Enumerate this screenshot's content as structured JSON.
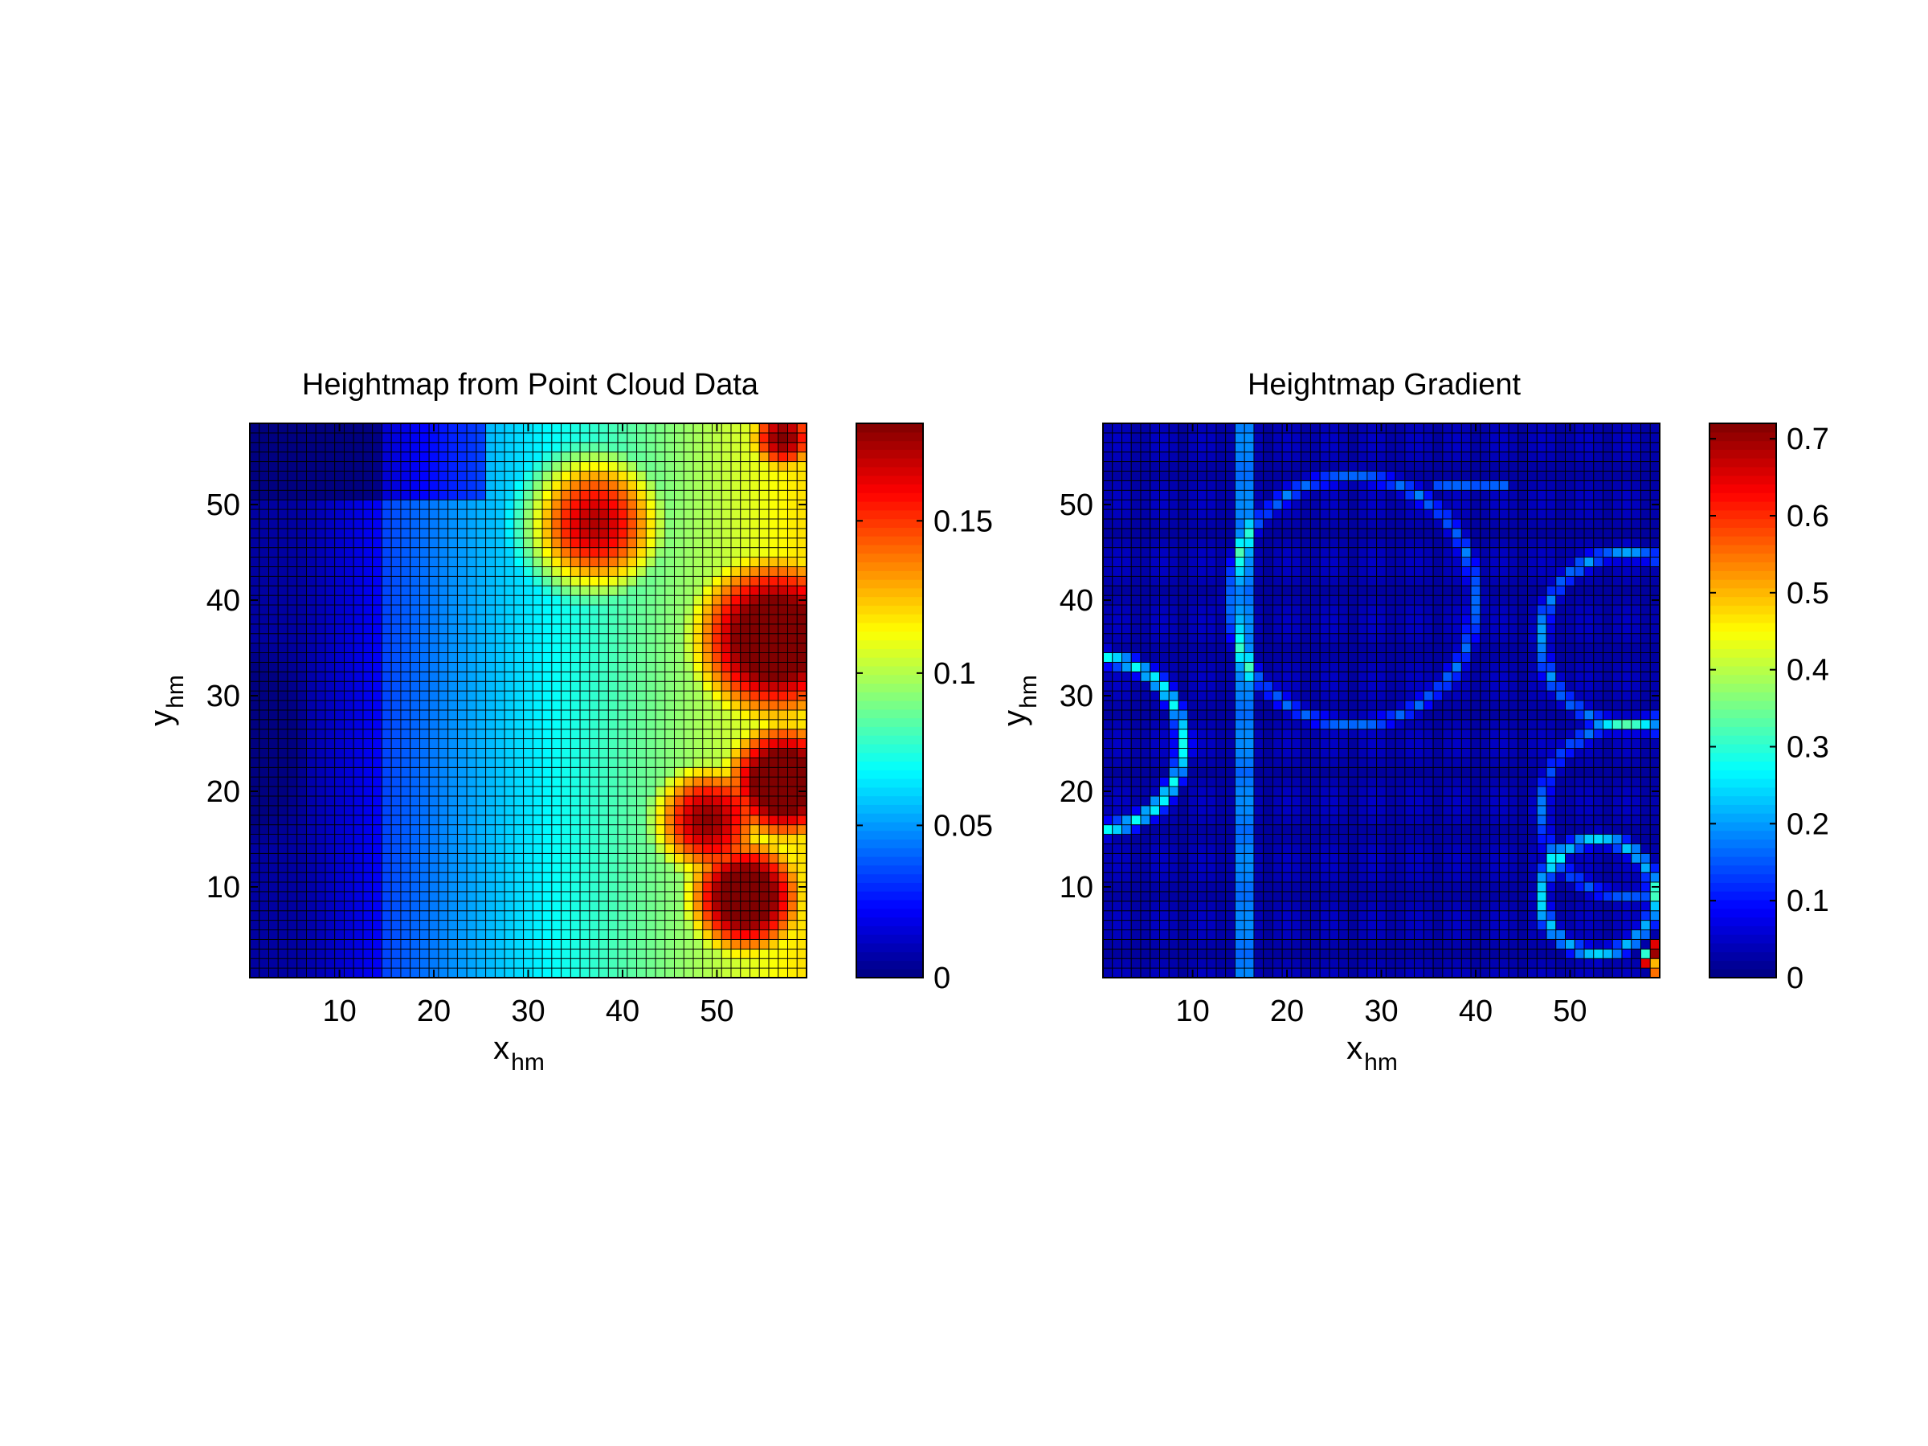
{
  "chart_data": [
    {
      "type": "heatmap",
      "title": "Heightmap from Point Cloud Data",
      "xlabel": {
        "main": "x",
        "sub": "hm"
      },
      "ylabel": {
        "main": "y",
        "sub": "hm"
      },
      "grid_cols": 59,
      "grid_rows": 58,
      "xlim": [
        0.5,
        59.5
      ],
      "ylim": [
        0.5,
        58.5
      ],
      "xticks": [
        10,
        20,
        30,
        40,
        50
      ],
      "yticks": [
        10,
        20,
        30,
        40,
        50
      ],
      "colorbar": {
        "colormap": "jet",
        "clim": [
          0,
          0.182
        ],
        "ticks": [
          0,
          0.05,
          0.1,
          0.15
        ],
        "tick_labels": [
          "0",
          "0.05",
          "0.1",
          "0.15"
        ]
      },
      "features": [
        {
          "kind": "gaussian",
          "x": 56,
          "y": 36,
          "height": 0.175,
          "spread": 7
        },
        {
          "kind": "gaussian",
          "x": 57,
          "y": 21,
          "height": 0.18,
          "spread": 5
        },
        {
          "kind": "gaussian",
          "x": 53,
          "y": 9,
          "height": 0.175,
          "spread": 5
        },
        {
          "kind": "gaussian",
          "x": 37,
          "y": 48,
          "height": 0.15,
          "spread": 6
        },
        {
          "kind": "gaussian",
          "x": 49,
          "y": 17,
          "height": 0.15,
          "spread": 5
        },
        {
          "kind": "gaussian",
          "x": 57,
          "y": 57,
          "height": 0.15,
          "spread": 3
        }
      ]
    },
    {
      "type": "heatmap",
      "title": "Heightmap Gradient",
      "xlabel": {
        "main": "x",
        "sub": "hm"
      },
      "ylabel": {
        "main": "y",
        "sub": "hm"
      },
      "grid_cols": 59,
      "grid_rows": 58,
      "xlim": [
        0.5,
        59.5
      ],
      "ylim": [
        0.5,
        58.5
      ],
      "xticks": [
        10,
        20,
        30,
        40,
        50
      ],
      "yticks": [
        10,
        20,
        30,
        40,
        50
      ],
      "colorbar": {
        "colormap": "jet",
        "clim": [
          0,
          0.72
        ],
        "ticks": [
          0,
          0.1,
          0.2,
          0.3,
          0.4,
          0.5,
          0.6,
          0.7
        ],
        "tick_labels": [
          "0",
          "0.1",
          "0.2",
          "0.3",
          "0.4",
          "0.5",
          "0.6",
          "0.7"
        ]
      },
      "hot_cells": [
        {
          "x": 59,
          "y": 1,
          "value": 0.55
        },
        {
          "x": 59,
          "y": 2,
          "value": 0.5
        },
        {
          "x": 59,
          "y": 3,
          "value": 0.7
        },
        {
          "x": 58,
          "y": 3,
          "value": 0.3
        },
        {
          "x": 58,
          "y": 2,
          "value": 0.65
        },
        {
          "x": 59,
          "y": 4,
          "value": 0.65
        }
      ]
    }
  ]
}
